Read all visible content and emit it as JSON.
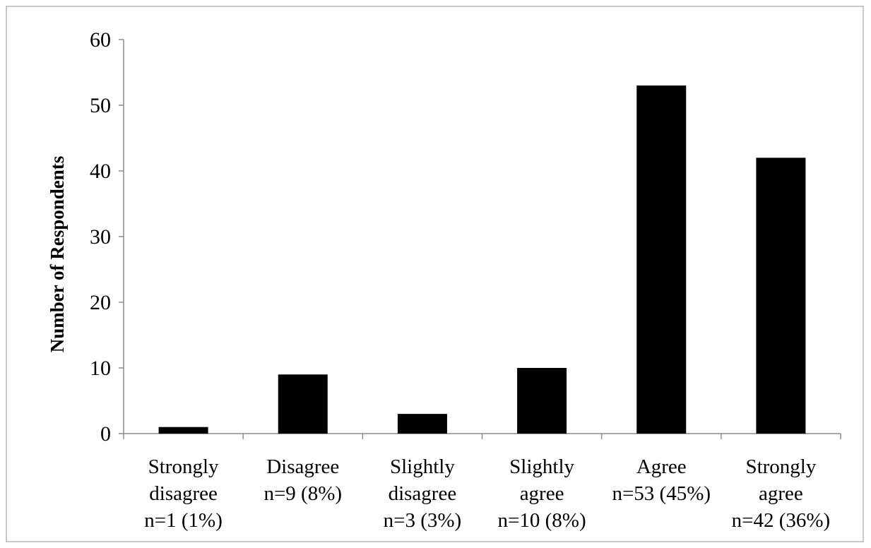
{
  "chart_data": {
    "type": "bar",
    "title": "",
    "xlabel": "",
    "ylabel": "Number of Respondents",
    "ylim": [
      0,
      60
    ],
    "yticks": [
      0,
      10,
      20,
      30,
      40,
      50,
      60
    ],
    "grid": false,
    "legend": "none",
    "bar_color": "#000000",
    "axis_color": "#8c8c8c",
    "categories": [
      [
        "Strongly",
        "disagree",
        "n=1 (1%)"
      ],
      [
        "Disagree",
        "n=9 (8%)"
      ],
      [
        "Slightly",
        "disagree",
        "n=3 (3%)"
      ],
      [
        "Slightly",
        "agree",
        "n=10 (8%)"
      ],
      [
        "Agree",
        "n=53 (45%)"
      ],
      [
        "Strongly",
        "agree",
        "n=42 (36%)"
      ]
    ],
    "values": [
      1,
      9,
      3,
      10,
      53,
      42
    ]
  }
}
